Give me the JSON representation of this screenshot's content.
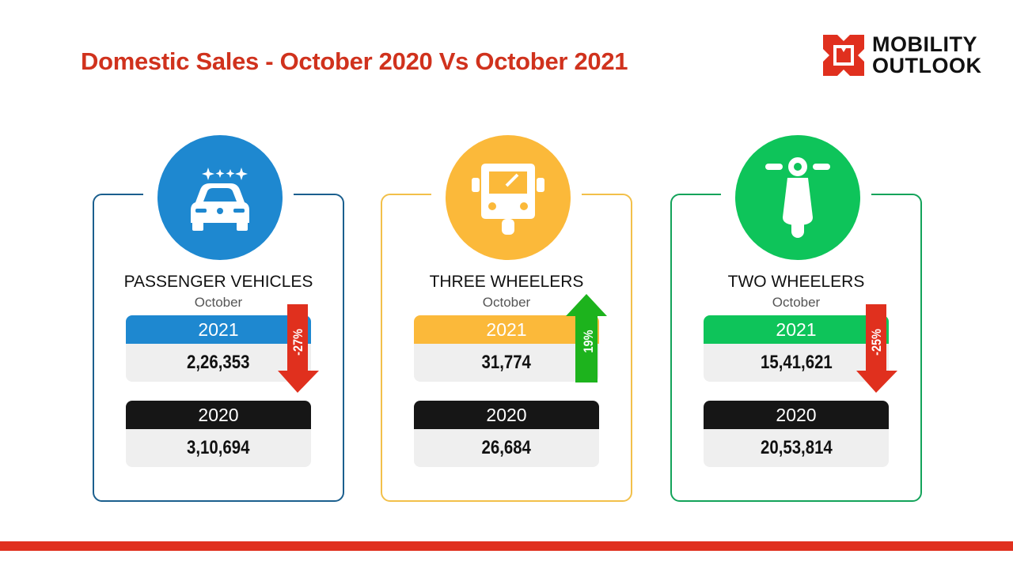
{
  "title": "Domestic Sales - October 2020 Vs October 2021",
  "logo": {
    "line1": "MOBILITY",
    "line2": "OUTLOOK",
    "color": "#e0301e"
  },
  "cards": [
    {
      "category": "PASSENGER VEHICLES",
      "month": "October",
      "year_current": "2021",
      "value_current": "2,26,353",
      "year_previous": "2020",
      "value_previous": "3,10,694",
      "change": "-27%",
      "direction": "down",
      "color": "#1e88d0",
      "icon": "car-icon"
    },
    {
      "category": "THREE WHEELERS",
      "month": "October",
      "year_current": "2021",
      "value_current": "31,774",
      "year_previous": "2020",
      "value_previous": "26,684",
      "change": "19%",
      "direction": "up",
      "color": "#fbb93a",
      "icon": "auto-rickshaw-icon"
    },
    {
      "category": "TWO WHEELERS",
      "month": "October",
      "year_current": "2021",
      "value_current": "15,41,621",
      "year_previous": "2020",
      "value_previous": "20,53,814",
      "change": "-25%",
      "direction": "down",
      "color": "#0ec45a",
      "icon": "scooter-icon"
    }
  ],
  "colors": {
    "down": "#e0301e",
    "up": "#1db31d",
    "previous": "#161616"
  }
}
